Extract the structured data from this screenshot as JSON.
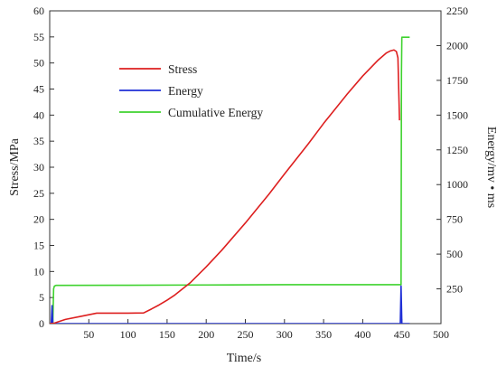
{
  "chart_data": {
    "type": "line",
    "xlabel": "Time/s",
    "ylabel_left": "Stress/MPa",
    "ylabel_right": "Energy/mv • ms",
    "xlim": [
      0,
      500
    ],
    "ylim_left": [
      0,
      60
    ],
    "ylim_right": [
      0,
      2250
    ],
    "x_ticks": [
      50,
      100,
      150,
      200,
      250,
      300,
      350,
      400,
      450,
      500
    ],
    "y_left_ticks": [
      0,
      5,
      10,
      15,
      20,
      25,
      30,
      35,
      40,
      45,
      50,
      55,
      60
    ],
    "y_right_ticks": [
      250,
      500,
      750,
      1000,
      1250,
      1500,
      1750,
      2000,
      2250
    ],
    "grid": false,
    "legend_position": "upper-left",
    "series": [
      {
        "name": "Stress",
        "axis": "left",
        "color": "#dd1f1f",
        "x": [
          0,
          5,
          10,
          20,
          40,
          60,
          80,
          100,
          120,
          130,
          140,
          150,
          160,
          180,
          200,
          220,
          250,
          280,
          300,
          330,
          350,
          380,
          400,
          420,
          430,
          435,
          440,
          443,
          445,
          446,
          447
        ],
        "y": [
          0,
          0.05,
          0.3,
          0.8,
          1.4,
          2.0,
          2.0,
          2.0,
          2.05,
          2.8,
          3.6,
          4.5,
          5.5,
          7.9,
          10.9,
          14.1,
          19.3,
          24.8,
          28.7,
          34.4,
          38.4,
          44.0,
          47.5,
          50.6,
          51.9,
          52.3,
          52.5,
          52.2,
          51.0,
          45.0,
          39.0
        ]
      },
      {
        "name": "Energy",
        "axis": "right",
        "color": "#1f2fd6",
        "x": [
          0,
          2,
          3,
          4,
          5,
          6,
          8,
          100,
          200,
          300,
          400,
          448,
          449,
          450,
          451,
          452,
          455,
          460
        ],
        "y": [
          0,
          0,
          130,
          0,
          0,
          0,
          0,
          0,
          0,
          0,
          0,
          0,
          270,
          0,
          0,
          0,
          0,
          0
        ]
      },
      {
        "name": "Cumulative Energy",
        "axis": "right",
        "color": "#3fd22f",
        "x": [
          0,
          1,
          2,
          3,
          4,
          5,
          6,
          8,
          10,
          100,
          200,
          300,
          400,
          449,
          449.5,
          450,
          455,
          460
        ],
        "y": [
          0,
          0,
          0,
          0,
          0,
          250,
          270,
          275,
          275,
          276,
          278,
          280,
          280,
          280,
          1800,
          2060,
          2060,
          2060
        ]
      }
    ]
  }
}
